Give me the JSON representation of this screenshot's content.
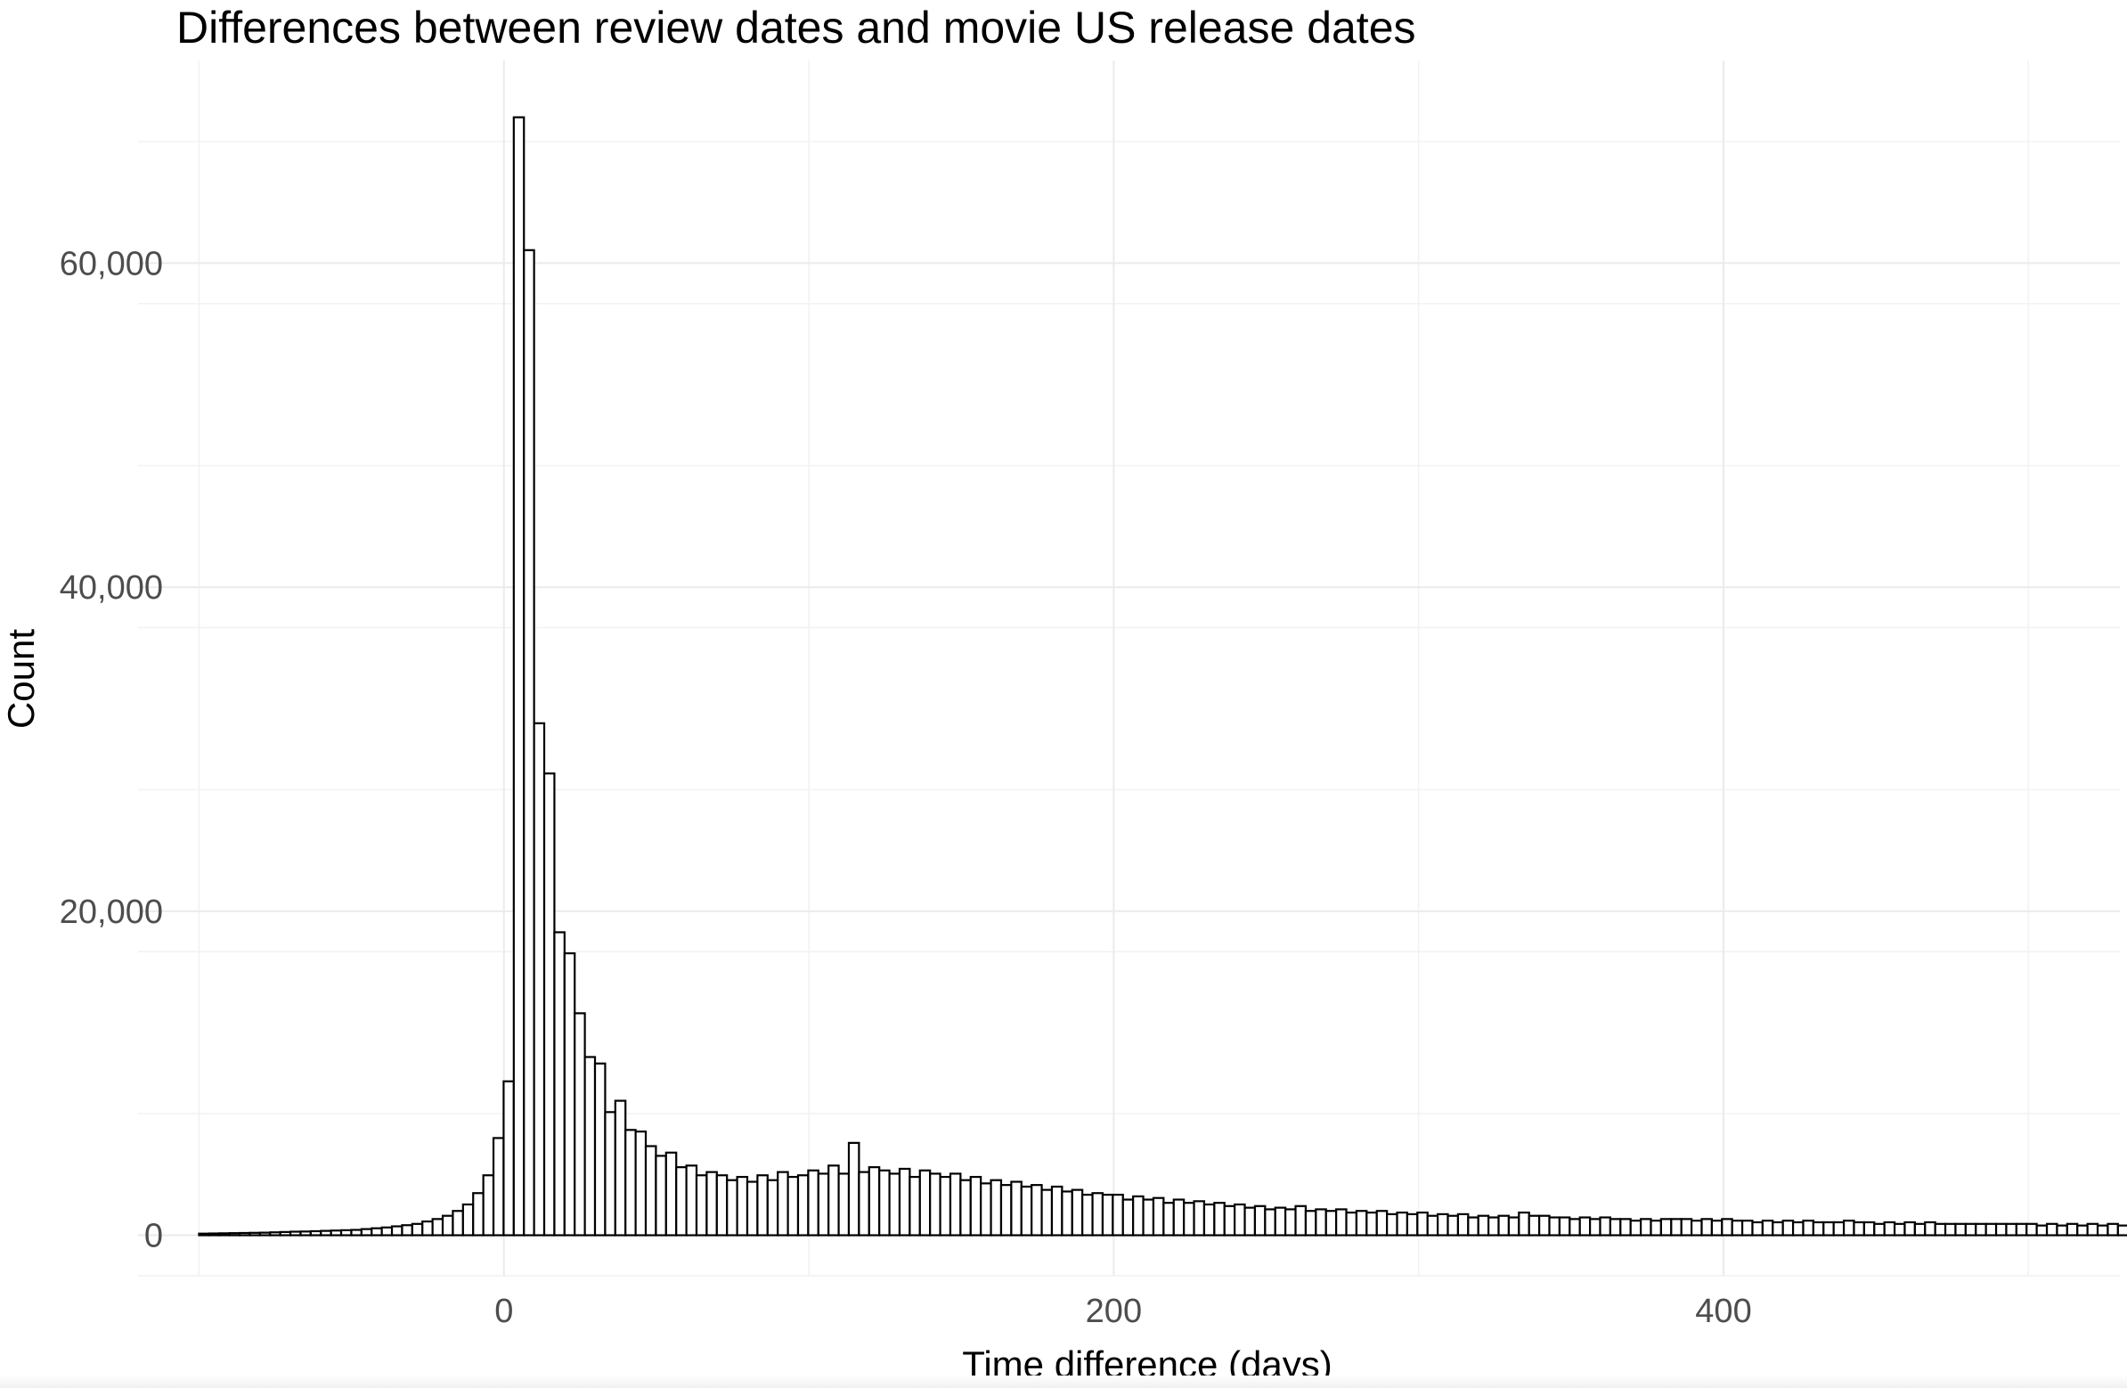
{
  "chart_data": {
    "type": "bar",
    "title": "Differences between review dates and movie US release dates",
    "xlabel": "Time difference (days)",
    "ylabel": "Count",
    "xlim": [
      -120,
      530
    ],
    "ylim": [
      -2500,
      72500
    ],
    "x_ticks": [
      0,
      200,
      400
    ],
    "x_tick_labels": [
      "0",
      "200",
      "400"
    ],
    "y_ticks": [
      0,
      20000,
      40000,
      60000
    ],
    "y_tick_labels": [
      "0",
      "20,000",
      "40,000",
      "60,000"
    ],
    "grid": true,
    "bin_start": -100,
    "bin_width": 3.33,
    "values": [
      100,
      110,
      120,
      130,
      140,
      150,
      160,
      180,
      200,
      220,
      230,
      250,
      270,
      290,
      310,
      330,
      380,
      430,
      480,
      550,
      620,
      700,
      850,
      1000,
      1200,
      1500,
      1900,
      2600,
      3700,
      6000,
      9500,
      69000,
      60800,
      31600,
      28500,
      18700,
      17400,
      13700,
      11000,
      10600,
      7600,
      8300,
      6500,
      6400,
      5500,
      4900,
      5100,
      4200,
      4300,
      3700,
      3900,
      3700,
      3400,
      3600,
      3300,
      3700,
      3400,
      3900,
      3600,
      3700,
      4000,
      3800,
      4300,
      3800,
      5700,
      3900,
      4200,
      4000,
      3800,
      4100,
      3600,
      4000,
      3800,
      3600,
      3800,
      3400,
      3600,
      3200,
      3400,
      3100,
      3300,
      3000,
      3100,
      2800,
      3000,
      2700,
      2800,
      2500,
      2600,
      2500,
      2500,
      2200,
      2400,
      2200,
      2300,
      2000,
      2200,
      2000,
      2100,
      1900,
      2000,
      1800,
      1900,
      1700,
      1800,
      1600,
      1700,
      1600,
      1800,
      1500,
      1600,
      1500,
      1600,
      1400,
      1500,
      1400,
      1500,
      1300,
      1400,
      1300,
      1400,
      1200,
      1300,
      1200,
      1300,
      1100,
      1200,
      1100,
      1200,
      1100,
      1400,
      1200,
      1200,
      1100,
      1100,
      1000,
      1100,
      1000,
      1100,
      1000,
      1000,
      900,
      1000,
      900,
      1000,
      1000,
      1000,
      900,
      1000,
      900,
      1000,
      900,
      900,
      800,
      900,
      800,
      900,
      800,
      900,
      800,
      800,
      800,
      900,
      800,
      800,
      700,
      800,
      700,
      800,
      700,
      800,
      700,
      700,
      700,
      700,
      700,
      700,
      700,
      700,
      700,
      700,
      600,
      700,
      600,
      700,
      600,
      700,
      600,
      700,
      600,
      650,
      600,
      650,
      600,
      650,
      600,
      650,
      600,
      650,
      550,
      600,
      550,
      600
    ]
  }
}
